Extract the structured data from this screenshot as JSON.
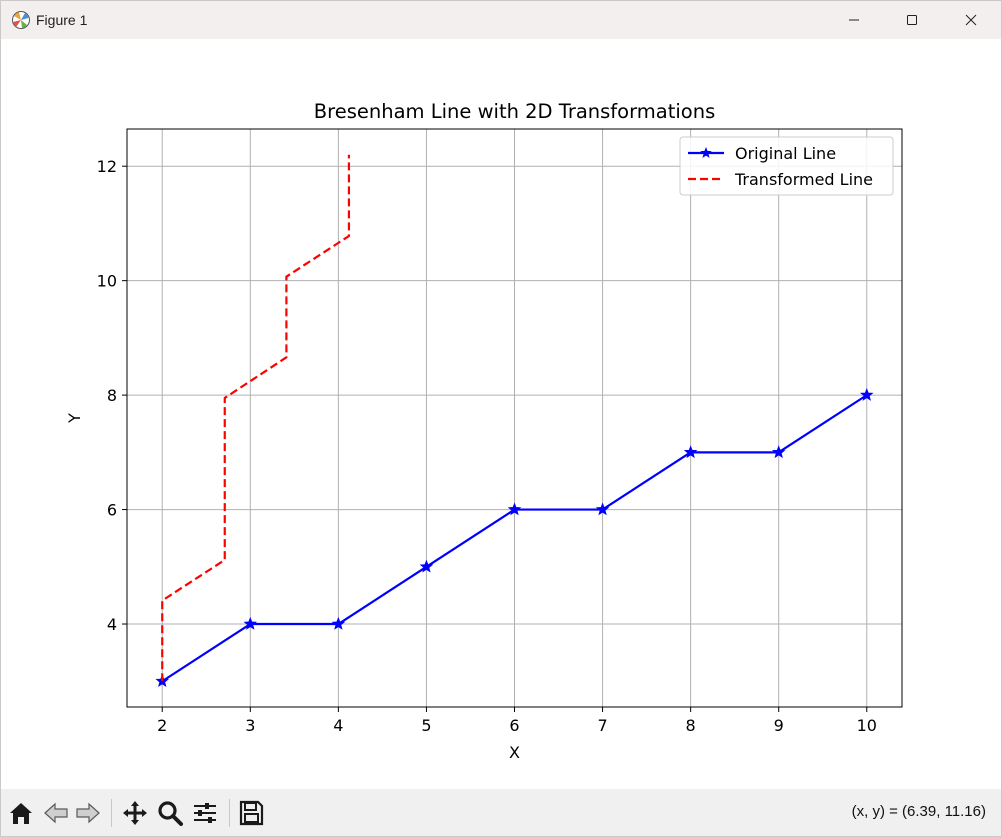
{
  "window": {
    "title": "Figure 1"
  },
  "toolbar": {
    "buttons": [
      "home-icon",
      "back-arrow-icon",
      "forward-arrow-icon",
      "pan-icon",
      "zoom-icon",
      "configure-subplots-icon",
      "save-icon"
    ],
    "coords": "(x, y) = (6.39, 11.16)"
  },
  "colors": {
    "original": "#0000ff",
    "transformed": "#ff0000",
    "grid": "#b0b0b0",
    "titlebar": "#f3efef",
    "toolbar": "#f0f0f0"
  },
  "chart_data": {
    "type": "line",
    "title": "Bresenham Line with 2D Transformations",
    "xlabel": "X",
    "ylabel": "Y",
    "xlim": [
      1.6,
      10.4
    ],
    "ylim": [
      2.55,
      12.65
    ],
    "xticks": [
      2,
      3,
      4,
      5,
      6,
      7,
      8,
      9,
      10
    ],
    "yticks": [
      4,
      6,
      8,
      10,
      12
    ],
    "grid": true,
    "legend_position": "top-right",
    "series": [
      {
        "name": "Original Line",
        "style": "solid",
        "marker": "star",
        "color": "#0000ff",
        "x": [
          2,
          3,
          4,
          5,
          6,
          7,
          8,
          9,
          10
        ],
        "y": [
          3,
          4,
          4,
          5,
          6,
          6,
          7,
          7,
          8
        ]
      },
      {
        "name": "Transformed Line",
        "style": "dashed",
        "marker": "none",
        "color": "#ff0000",
        "x": [
          2,
          2,
          2.71,
          2.71,
          3.41,
          3.41,
          4.12,
          4.12
        ],
        "y": [
          3,
          4.41,
          5.12,
          7.95,
          8.66,
          10.07,
          10.78,
          12.2
        ]
      }
    ]
  }
}
